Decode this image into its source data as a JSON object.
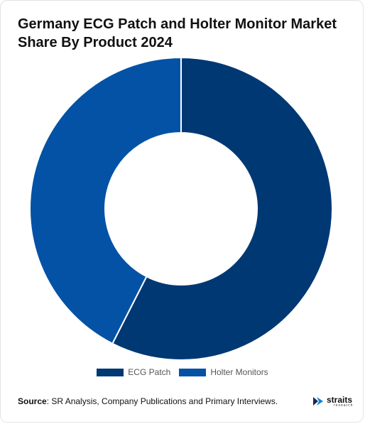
{
  "title": "Germany ECG Patch and Holter Monitor Market Share By Product 2024",
  "source_label": "Source",
  "source_text": ": SR Analysis, Company Publications and Primary Interviews.",
  "logo": {
    "word": "straits",
    "sub": "research",
    "icon": "straits-logo-icon"
  },
  "colors": {
    "ECG Patch": "#003874",
    "Holter Monitors": "#0352a5"
  },
  "chart_data": {
    "type": "pie",
    "donut": true,
    "title": "Germany ECG Patch and Holter Monitor Market Share By Product 2024",
    "categories": [
      "ECG Patch",
      "Holter Monitors"
    ],
    "values": [
      57.5,
      42.5
    ],
    "unit": "%",
    "legend_position": "bottom"
  }
}
